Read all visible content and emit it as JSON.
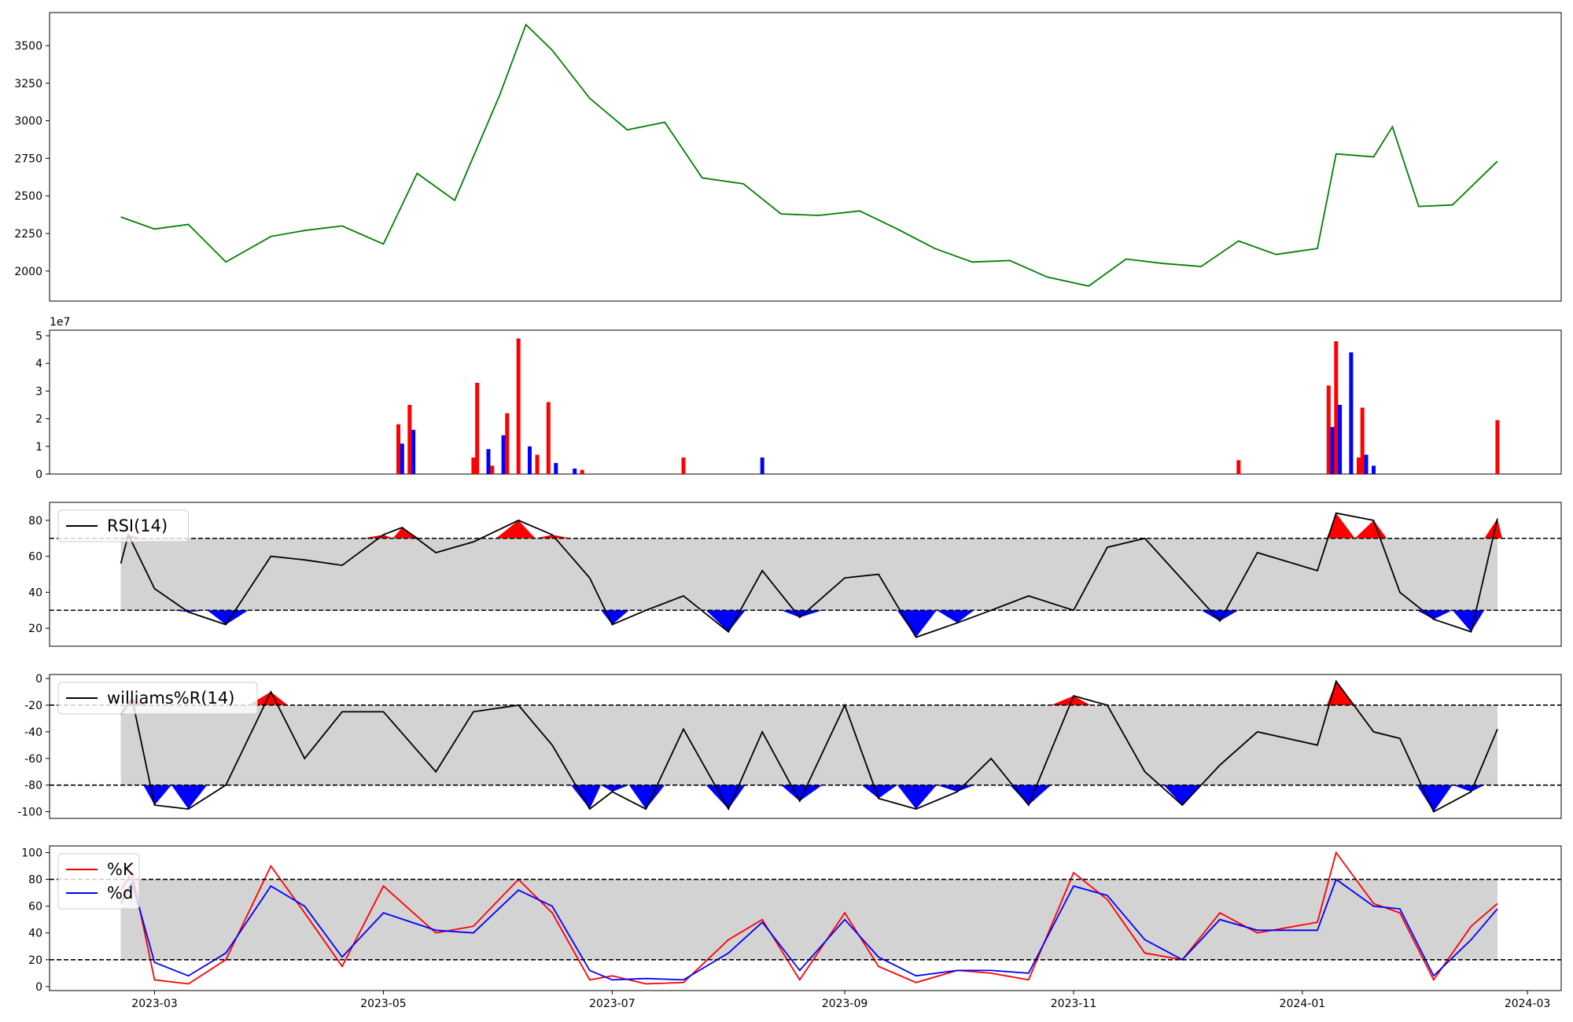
{
  "chart_data": [
    {
      "type": "line",
      "title": "",
      "xlabel": "",
      "ylabel": "",
      "ylim": [
        1800,
        3720
      ],
      "yticks": [
        "2000",
        "2250",
        "2500",
        "2750",
        "3000",
        "3250",
        "3500"
      ],
      "line_color": "#008000",
      "x": [
        "2023-02-20",
        "2023-03-01",
        "2023-03-10",
        "2023-03-20",
        "2023-04-01",
        "2023-04-10",
        "2023-04-20",
        "2023-05-01",
        "2023-05-10",
        "2023-05-20",
        "2023-06-01",
        "2023-06-08",
        "2023-06-15",
        "2023-06-25",
        "2023-07-05",
        "2023-07-15",
        "2023-07-25",
        "2023-08-05",
        "2023-08-15",
        "2023-08-25",
        "2023-09-05",
        "2023-09-15",
        "2023-09-25",
        "2023-10-05",
        "2023-10-15",
        "2023-10-25",
        "2023-11-05",
        "2023-11-15",
        "2023-11-25",
        "2023-12-05",
        "2023-12-15",
        "2023-12-25",
        "2024-01-05",
        "2024-01-10",
        "2024-01-20",
        "2024-01-25",
        "2024-02-01",
        "2024-02-10",
        "2024-02-22"
      ],
      "values": [
        2360,
        2280,
        2310,
        2060,
        2230,
        2270,
        2300,
        2180,
        2650,
        2470,
        3170,
        3640,
        3470,
        3150,
        2940,
        2990,
        2620,
        2580,
        2380,
        2370,
        2400,
        2280,
        2150,
        2060,
        2070,
        1960,
        1900,
        2080,
        2050,
        2030,
        2200,
        2110,
        2150,
        2780,
        2760,
        2960,
        2430,
        2440,
        2730
      ]
    },
    {
      "type": "bar",
      "title": "",
      "ylim": [
        0,
        52000000
      ],
      "yticks": [
        "0",
        "1",
        "2",
        "3",
        "4",
        "5"
      ],
      "offset_label": "1e7",
      "up_color": "#ff0000",
      "down_color": "#0000ff",
      "x": [
        "2023-05-05",
        "2023-05-06",
        "2023-05-08",
        "2023-05-09",
        "2023-05-25",
        "2023-05-26",
        "2023-05-29",
        "2023-05-30",
        "2023-06-02",
        "2023-06-03",
        "2023-06-06",
        "2023-06-09",
        "2023-06-11",
        "2023-06-14",
        "2023-06-16",
        "2023-06-21",
        "2023-06-23",
        "2023-07-20",
        "2023-08-10",
        "2024-01-08",
        "2024-01-09",
        "2024-01-10",
        "2024-01-11",
        "2024-01-14",
        "2024-01-16",
        "2024-01-17",
        "2024-01-18",
        "2024-01-20",
        "2023-12-15",
        "2024-02-22"
      ],
      "values": [
        18000000,
        11000000,
        25000000,
        16000000,
        6000000,
        33000000,
        9000000,
        3000000,
        14000000,
        22000000,
        49000000,
        10000000,
        7000000,
        26000000,
        4000000,
        2000000,
        1500000,
        6000000,
        6000000,
        32000000,
        17000000,
        48000000,
        25000000,
        44000000,
        6000000,
        24000000,
        7000000,
        3000000,
        5000000,
        19500000
      ],
      "colors": [
        "red",
        "blue",
        "red",
        "blue",
        "red",
        "red",
        "blue",
        "red",
        "blue",
        "red",
        "red",
        "blue",
        "red",
        "red",
        "blue",
        "blue",
        "red",
        "red",
        "blue",
        "red",
        "blue",
        "red",
        "blue",
        "blue",
        "red",
        "red",
        "blue",
        "blue",
        "red",
        "red"
      ]
    },
    {
      "type": "area",
      "title": "",
      "ylim": [
        10,
        90
      ],
      "yticks": [
        "20",
        "40",
        "60",
        "80"
      ],
      "upper_level": 70,
      "lower_level": 30,
      "series": [
        {
          "name": "RSI(14)",
          "color": "#000000"
        }
      ],
      "x": [
        "2023-02-20",
        "2023-02-22",
        "2023-03-01",
        "2023-03-10",
        "2023-03-20",
        "2023-04-01",
        "2023-04-10",
        "2023-04-20",
        "2023-05-01",
        "2023-05-06",
        "2023-05-15",
        "2023-05-25",
        "2023-06-06",
        "2023-06-15",
        "2023-06-25",
        "2023-07-01",
        "2023-07-10",
        "2023-07-20",
        "2023-08-01",
        "2023-08-10",
        "2023-08-20",
        "2023-09-01",
        "2023-09-10",
        "2023-09-20",
        "2023-10-01",
        "2023-10-10",
        "2023-10-20",
        "2023-11-01",
        "2023-11-10",
        "2023-11-20",
        "2023-11-30",
        "2023-12-10",
        "2023-12-20",
        "2024-01-05",
        "2024-01-10",
        "2024-01-20",
        "2024-01-27",
        "2024-02-05",
        "2024-02-15",
        "2024-02-22"
      ],
      "values": [
        56,
        72,
        42,
        29,
        22,
        60,
        58,
        55,
        72,
        76,
        62,
        68,
        80,
        72,
        48,
        22,
        30,
        38,
        18,
        52,
        26,
        48,
        50,
        15,
        23,
        30,
        38,
        30,
        65,
        70,
        47,
        24,
        62,
        52,
        84,
        80,
        40,
        25,
        18,
        81
      ]
    },
    {
      "type": "area",
      "title": "",
      "ylim": [
        -105,
        3
      ],
      "yticks": [
        "0",
        "-20",
        "-40",
        "-60",
        "-80",
        "-100"
      ],
      "upper_level": -20,
      "lower_level": -80,
      "series": [
        {
          "name": "williams%R(14)",
          "color": "#000000"
        }
      ],
      "x": [
        "2023-02-20",
        "2023-02-23",
        "2023-03-01",
        "2023-03-10",
        "2023-03-20",
        "2023-04-01",
        "2023-04-10",
        "2023-04-20",
        "2023-05-01",
        "2023-05-15",
        "2023-05-25",
        "2023-06-06",
        "2023-06-15",
        "2023-06-25",
        "2023-07-01",
        "2023-07-10",
        "2023-07-20",
        "2023-08-01",
        "2023-08-10",
        "2023-08-20",
        "2023-09-01",
        "2023-09-10",
        "2023-09-20",
        "2023-10-01",
        "2023-10-10",
        "2023-10-20",
        "2023-11-01",
        "2023-11-10",
        "2023-11-20",
        "2023-11-30",
        "2023-12-10",
        "2023-12-20",
        "2024-01-05",
        "2024-01-10",
        "2024-01-20",
        "2024-01-27",
        "2024-02-05",
        "2024-02-15",
        "2024-02-22"
      ],
      "values": [
        -27,
        -15,
        -95,
        -98,
        -80,
        -10,
        -60,
        -25,
        -25,
        -70,
        -25,
        -20,
        -50,
        -98,
        -85,
        -98,
        -38,
        -98,
        -40,
        -92,
        -20,
        -90,
        -98,
        -85,
        -60,
        -95,
        -13,
        -20,
        -70,
        -95,
        -65,
        -40,
        -50,
        -2,
        -40,
        -45,
        -100,
        -85,
        -38
      ]
    },
    {
      "type": "line",
      "title": "",
      "ylim": [
        -3,
        105
      ],
      "yticks": [
        "0",
        "20",
        "40",
        "60",
        "80",
        "100"
      ],
      "upper_level": 80,
      "lower_level": 20,
      "series": [
        {
          "name": "%K",
          "color": "#ff0000",
          "x": [
            "2023-02-20",
            "2023-02-23",
            "2023-03-01",
            "2023-03-10",
            "2023-03-20",
            "2023-04-01",
            "2023-04-10",
            "2023-04-20",
            "2023-05-01",
            "2023-05-15",
            "2023-05-25",
            "2023-06-06",
            "2023-06-15",
            "2023-06-25",
            "2023-07-01",
            "2023-07-10",
            "2023-07-20",
            "2023-08-01",
            "2023-08-10",
            "2023-08-20",
            "2023-09-01",
            "2023-09-10",
            "2023-09-20",
            "2023-10-01",
            "2023-10-10",
            "2023-10-20",
            "2023-11-01",
            "2023-11-10",
            "2023-11-20",
            "2023-11-30",
            "2023-12-10",
            "2023-12-20",
            "2024-01-05",
            "2024-01-10",
            "2024-01-20",
            "2024-01-27",
            "2024-02-05",
            "2024-02-15",
            "2024-02-22"
          ],
          "values": [
            72,
            85,
            5,
            2,
            20,
            90,
            55,
            15,
            75,
            40,
            45,
            80,
            55,
            5,
            8,
            2,
            3,
            35,
            50,
            5,
            55,
            15,
            3,
            12,
            10,
            5,
            85,
            65,
            25,
            20,
            55,
            40,
            48,
            100,
            62,
            55,
            5,
            45,
            62
          ]
        },
        {
          "name": "%d",
          "color": "#0000ff",
          "x": [
            "2023-02-20",
            "2023-02-23",
            "2023-03-01",
            "2023-03-10",
            "2023-03-20",
            "2023-04-01",
            "2023-04-10",
            "2023-04-20",
            "2023-05-01",
            "2023-05-15",
            "2023-05-25",
            "2023-06-06",
            "2023-06-15",
            "2023-06-25",
            "2023-07-01",
            "2023-07-10",
            "2023-07-20",
            "2023-08-01",
            "2023-08-10",
            "2023-08-20",
            "2023-09-01",
            "2023-09-10",
            "2023-09-20",
            "2023-10-01",
            "2023-10-10",
            "2023-10-20",
            "2023-11-01",
            "2023-11-10",
            "2023-11-20",
            "2023-11-30",
            "2023-12-10",
            "2023-12-20",
            "2024-01-05",
            "2024-01-10",
            "2024-01-20",
            "2024-01-27",
            "2024-02-05",
            "2024-02-15",
            "2024-02-22"
          ],
          "values": [
            62,
            78,
            18,
            8,
            25,
            75,
            60,
            22,
            55,
            42,
            40,
            72,
            60,
            12,
            5,
            6,
            5,
            25,
            48,
            12,
            50,
            22,
            8,
            12,
            12,
            10,
            75,
            68,
            35,
            20,
            50,
            42,
            42,
            80,
            60,
            58,
            8,
            35,
            58
          ]
        }
      ]
    }
  ],
  "x_axis": {
    "tick_labels": [
      "2023-03",
      "2023-05",
      "2023-07",
      "2023-09",
      "2023-11",
      "2024-01",
      "2024-03"
    ]
  },
  "fill_colors": {
    "band": "#d3d3d3",
    "overbought": "#ff0000",
    "oversold": "#0000ff"
  }
}
